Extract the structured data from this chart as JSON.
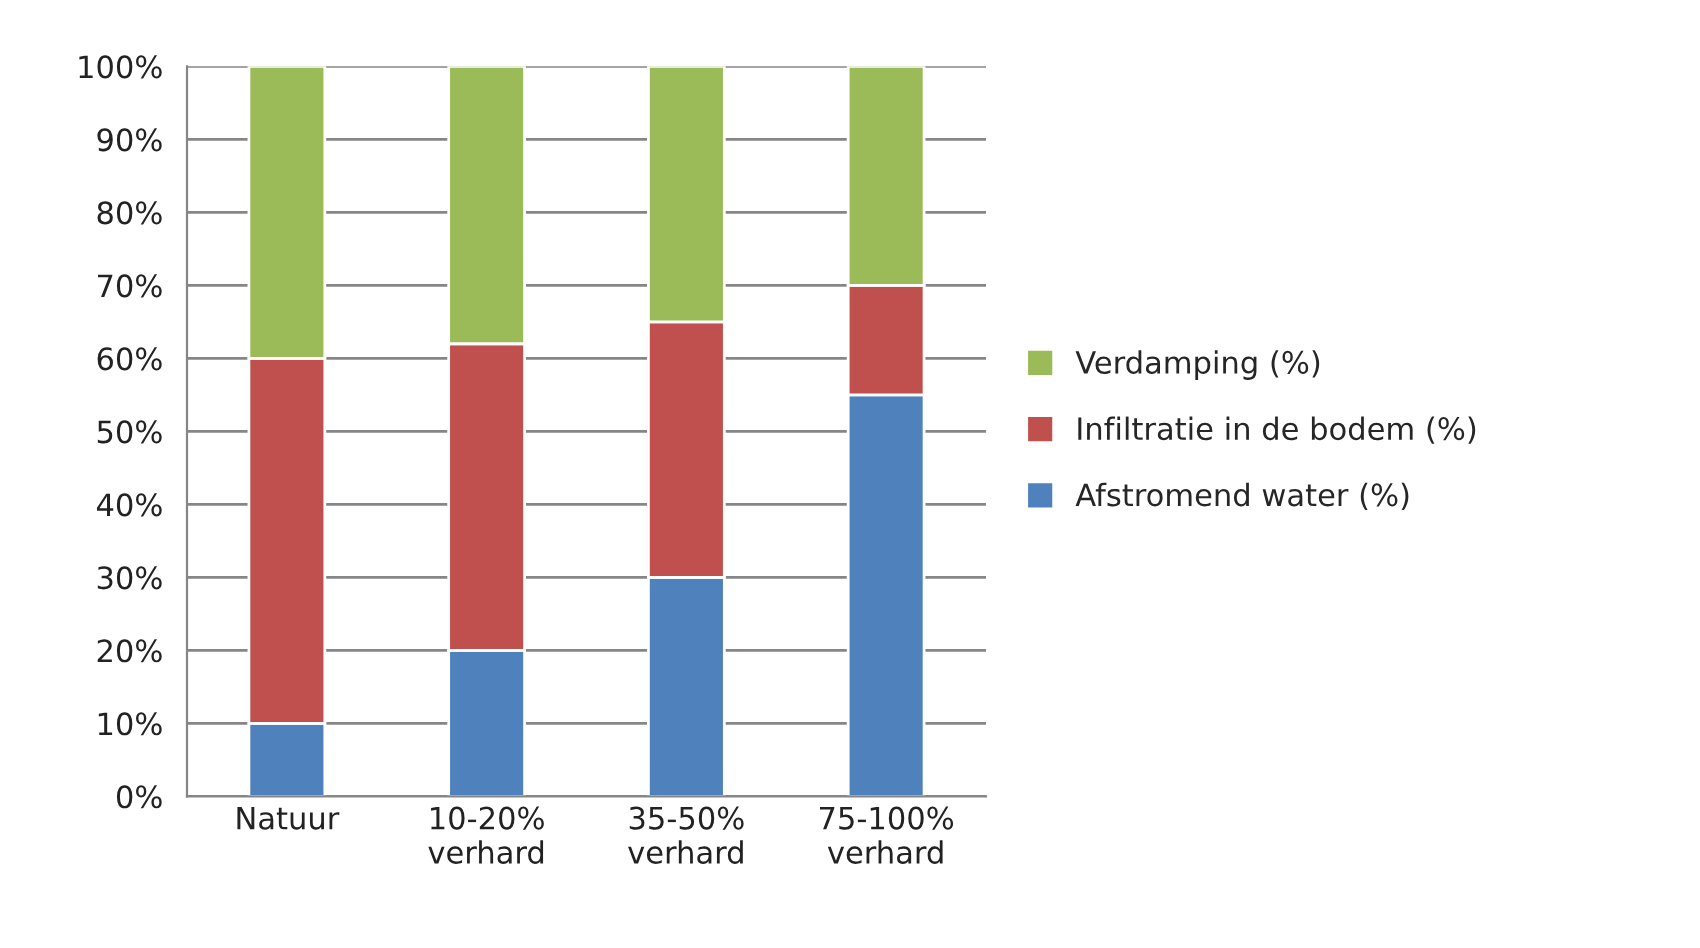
{
  "chart_data": {
    "type": "bar",
    "stacked": true,
    "categories": [
      "Natuur",
      "10-20%\nverhard",
      "35-50%\nverhard",
      "75-100%\nverhard"
    ],
    "series": [
      {
        "name": "Afstromend water (%)",
        "color": "#4f81bd",
        "values": [
          10,
          20,
          30,
          55
        ]
      },
      {
        "name": "Infiltratie in de bodem (%)",
        "color": "#c0504d",
        "values": [
          50,
          42,
          35,
          15
        ]
      },
      {
        "name": "Verdamping (%)",
        "color": "#9bbb59",
        "values": [
          40,
          38,
          35,
          30
        ]
      }
    ],
    "ylim": [
      0,
      100
    ],
    "yticks": [
      {
        "value": 0,
        "label": "0%"
      },
      {
        "value": 10,
        "label": "10%"
      },
      {
        "value": 20,
        "label": "20%"
      },
      {
        "value": 30,
        "label": "30%"
      },
      {
        "value": 40,
        "label": "40%"
      },
      {
        "value": 50,
        "label": "50%"
      },
      {
        "value": 60,
        "label": "60%"
      },
      {
        "value": 70,
        "label": "70%"
      },
      {
        "value": 80,
        "label": "80%"
      },
      {
        "value": 90,
        "label": "90%"
      },
      {
        "value": 100,
        "label": "100%"
      }
    ],
    "grid": "y",
    "legend": "right"
  }
}
